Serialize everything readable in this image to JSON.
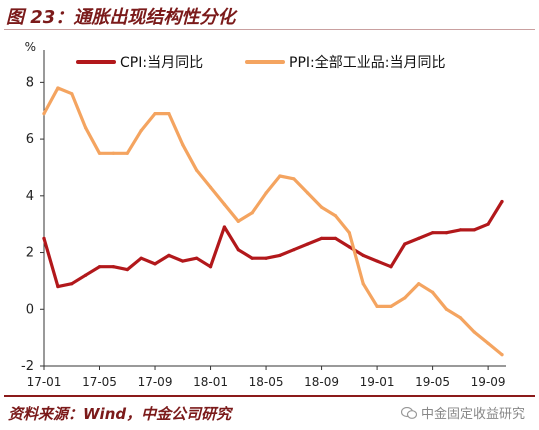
{
  "figure": {
    "title": "图 23：通胀出现结构性分化",
    "source": "资料来源：Wind，中金公司研究",
    "watermark_text": "中金固定收益研究",
    "watermark_icon": "wechat-icon"
  },
  "chart_data": {
    "type": "line",
    "title": "",
    "xlabel": "",
    "ylabel": "%",
    "ylim": [
      -2,
      9
    ],
    "yticks": [
      -2,
      0,
      2,
      4,
      6,
      8
    ],
    "x": [
      "17-01",
      "17-02",
      "17-03",
      "17-04",
      "17-05",
      "17-06",
      "17-07",
      "17-08",
      "17-09",
      "17-10",
      "17-11",
      "17-12",
      "18-01",
      "18-02",
      "18-03",
      "18-04",
      "18-05",
      "18-06",
      "18-07",
      "18-08",
      "18-09",
      "18-10",
      "18-11",
      "18-12",
      "19-01",
      "19-02",
      "19-03",
      "19-04",
      "19-05",
      "19-06",
      "19-07",
      "19-08",
      "19-09",
      "19-10"
    ],
    "xtick_labels": [
      "17-01",
      "17-05",
      "17-09",
      "18-01",
      "18-05",
      "18-09",
      "19-01",
      "19-05",
      "19-09"
    ],
    "grid": false,
    "legend_position": "top",
    "series": [
      {
        "name": "CPI:当月同比",
        "color": "#b2181b",
        "values": [
          2.5,
          0.8,
          0.9,
          1.2,
          1.5,
          1.5,
          1.4,
          1.8,
          1.6,
          1.9,
          1.7,
          1.8,
          1.5,
          2.9,
          2.1,
          1.8,
          1.8,
          1.9,
          2.1,
          2.3,
          2.5,
          2.5,
          2.2,
          1.9,
          1.7,
          1.5,
          2.3,
          2.5,
          2.7,
          2.7,
          2.8,
          2.8,
          3.0,
          3.8
        ]
      },
      {
        "name": "PPI:全部工业品:当月同比",
        "color": "#f4a460",
        "values": [
          6.9,
          7.8,
          7.6,
          6.4,
          5.5,
          5.5,
          5.5,
          6.3,
          6.9,
          6.9,
          5.8,
          4.9,
          4.3,
          3.7,
          3.1,
          3.4,
          4.1,
          4.7,
          4.6,
          4.1,
          3.6,
          3.3,
          2.7,
          0.9,
          0.1,
          0.1,
          0.4,
          0.9,
          0.6,
          0.0,
          -0.3,
          -0.8,
          -1.2,
          -1.6
        ]
      }
    ]
  }
}
